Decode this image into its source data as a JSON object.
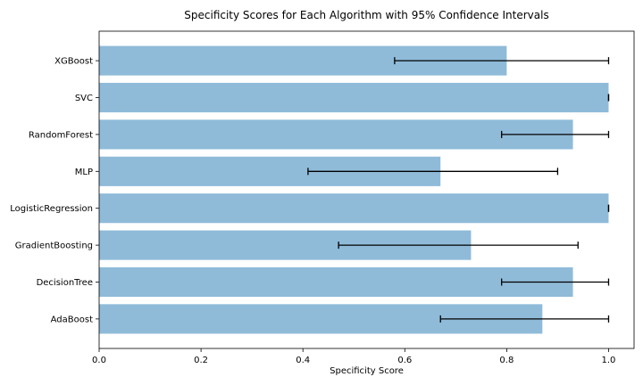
{
  "chart_data": {
    "type": "bar",
    "orientation": "horizontal",
    "title": "Specificity Scores for Each Algorithm with 95% Confidence Intervals",
    "xlabel": "Specificity Score",
    "ylabel": "",
    "xlim": [
      0,
      1.05
    ],
    "xticks": [
      0.0,
      0.2,
      0.4,
      0.6,
      0.8,
      1.0
    ],
    "xtick_labels": [
      "0.0",
      "0.2",
      "0.4",
      "0.6",
      "0.8",
      "1.0"
    ],
    "grid": false,
    "bar_color": "#1f77b4",
    "bar_alpha": 0.5,
    "categories": [
      "AdaBoost",
      "DecisionTree",
      "GradientBoosting",
      "LogisticRegression",
      "MLP",
      "RandomForest",
      "SVC",
      "XGBoost"
    ],
    "values": [
      0.87,
      0.93,
      0.73,
      1.0,
      0.67,
      0.93,
      1.0,
      0.8
    ],
    "ci_lower": [
      0.67,
      0.79,
      0.47,
      1.0,
      0.41,
      0.79,
      1.0,
      0.58
    ],
    "ci_upper": [
      1.0,
      1.0,
      0.94,
      1.0,
      0.9,
      1.0,
      1.0,
      1.0
    ]
  }
}
